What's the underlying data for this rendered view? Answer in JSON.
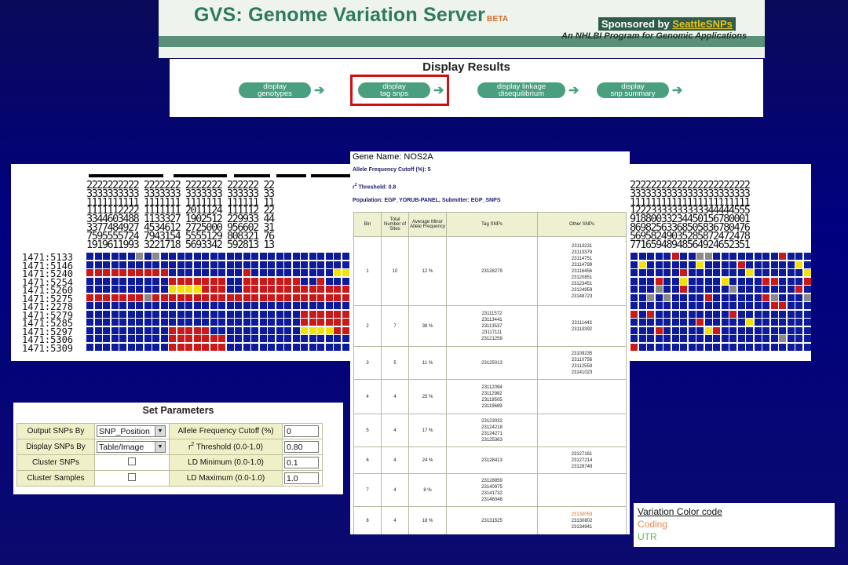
{
  "banner": {
    "title": "GVS: Genome Variation Server",
    "beta": "BETA",
    "sponsored_prefix": "Sponsored by ",
    "sponsor_link": "SeattleSNPs",
    "subtitle": "An NHLBI Program for Genomic Applications"
  },
  "results": {
    "heading": "Display Results",
    "buttons": [
      {
        "line1": "display",
        "line2": "genotypes"
      },
      {
        "line1": "display",
        "line2": "tag snps"
      },
      {
        "line1": "display linkage",
        "line2": "disequilibrium"
      },
      {
        "line1": "display",
        "line2": "snp summary"
      }
    ],
    "selected": "display tag snps"
  },
  "genotypes": {
    "sample_labels": [
      "1471:5133",
      "1471:5146",
      "1471:5240",
      "1471:5254",
      "1471:5260",
      "1471:5275",
      "1471:2278",
      "1471:5279",
      "1471:5285",
      "1471:5297",
      "1471:5306",
      "1471:5309"
    ],
    "header_rows_left": [
      "2222222222 2222222 2222222 222222 22",
      "3333333333 3333333 3333333 333333 33",
      "1111111111 1111111 1111111 111111 11",
      "1111112222 1111111 2011124 111112 22",
      "3344603488 1133327 1902512 229933 44",
      "3377484927 4534612 2725000 956602 31",
      "7595555724 7943154 5555129 808321 76",
      "1919611993 3221718 5693342 592813 13"
    ],
    "header_rows_right": [
      "22222222222222222222222",
      "33333333333333333333333",
      "11111111111111111111111",
      "12223333333333344444555",
      "91880033234450156780001",
      "86982563368505836780476",
      "56958249035285872472478",
      "77165948948564924652351"
    ],
    "left_grid": [
      "bbbbbbgbgbbbbbbbbbbbbbbbbbbbbbbbbbbb",
      "bbbbbbbbbbbbbbbbbbbbbbbbbbbbbbbbbbbb",
      "rrrrrrrrrrbbbbbbbbbrbbbbbbbbbbyyyybb",
      "bbbbbbbbbbrrrrrrrbbrrrrrrrbbrbbbbbbb",
      "bbbbbbbbbbyyyyrrrbbrrrrrrrrrrrrrrrrr",
      "rrrrrrrgrrrrrrrrrrrrrrrrrrrrrrrrrrrr",
      "bbbbbbbbbbbbbbbbbbbbbbbbbbbbbbbbbbbb",
      "bbbbbbbbbbbbbbbbbbbbbbbbbbrrrrrrrrrr",
      "bbbbbbbbbbbbbbbbbbbbbbbbbbrrrrrrrrrr",
      "bbbbbbbbbbrrrrrbbbbbbbbbbbyyyyrrrrrb",
      "bbbbbbbbbbrrrrrrrbbbbbbbbbbbbbbbbbgb",
      "bbbbbbbbbbrrrrrrrbbbbbbbbbbbbbbbbbbb"
    ],
    "right_grid": [
      "bbbbbrbbggbbbbbbbbrbbbb",
      "bybbbbbbybbbbrbbbbbbybb",
      "bbbbbbrbbbbbbbybbbbbbyb",
      "bbbrbbybbbbybbbbrrbbbrb",
      "bbbgbbrbbbbbgbbbbbbbrbb",
      "bbgbgbbbbrbbbbbbrgbbbgb",
      "bbbbbbbbbbbbbbbbbrrbbbb",
      "rbrbbbbbbbbbrbbbbbbbbbb",
      "bbbbbbbbrbbbbbybbbbbbbb",
      "bbbrbbbbbyrbbbbbbbbbbbb",
      "bbbbbbbbbbbbbbbbbbgbbbb",
      "rbbbbbbbbbbbbbbbbbbbbbb"
    ]
  },
  "tag_snps": {
    "gene_label": "Gene Name: NOS2A",
    "allele_cutoff": "Allele Frequency Cutoff (%): 5",
    "r2_label": "r",
    "r2_value": " Threshold: 0.8",
    "population": "Population: EGP_YORUB-PANEL, Submitter: EGP_SNPS",
    "columns": [
      "Bin",
      "Total Number of Sites",
      "Average Minor Allele Frequency",
      "Tag SNPs",
      "Other SNPs"
    ],
    "rows": [
      {
        "bin": "1",
        "sites": "10",
        "maf": "12 %",
        "tag": [
          "23128279"
        ],
        "other": [
          "23113231",
          "23113379",
          "23114751",
          "23114799",
          "23116456",
          "23120851",
          "23123451",
          "23124959",
          "23148723"
        ]
      },
      {
        "bin": "2",
        "sites": "7",
        "maf": "38 %",
        "tag": [
          "23111572",
          "23113441",
          "23113537",
          "23117111",
          "23121258"
        ],
        "other": [
          "23111443",
          "23113392"
        ]
      },
      {
        "bin": "3",
        "sites": "5",
        "maf": "11 %",
        "tag": [
          "23125013"
        ],
        "other": [
          "23109235",
          "23110756",
          "23112559",
          "23141023"
        ]
      },
      {
        "bin": "4",
        "sites": "4",
        "maf": "25 %",
        "tag": [
          "23112094",
          "23112982",
          "23119505",
          "23119689"
        ],
        "other": []
      },
      {
        "bin": "5",
        "sites": "4",
        "maf": "17 %",
        "tag": [
          "23123032",
          "23124218",
          "23124271",
          "23125363"
        ],
        "other": []
      },
      {
        "bin": "6",
        "sites": "4",
        "maf": "24 %",
        "tag": [
          "23128413"
        ],
        "other": [
          "23127161",
          "23127214",
          "23128749"
        ]
      },
      {
        "bin": "7",
        "sites": "4",
        "maf": "8 %",
        "tag": [
          "23128859",
          "23140975",
          "23141732",
          "23146048"
        ],
        "other": []
      },
      {
        "bin": "8",
        "sites": "4",
        "maf": "18 %",
        "tag": [
          "23131525"
        ],
        "other": [
          "23130059",
          "23130802",
          "23134941"
        ]
      }
    ]
  },
  "parameters": {
    "heading": "Set Parameters",
    "output_snps_by": {
      "label": "Output SNPs By",
      "value": "SNP_Position"
    },
    "display_snps_by": {
      "label": "Display SNPs By",
      "value": "Table/Image"
    },
    "cluster_snps": {
      "label": "Cluster SNPs"
    },
    "cluster_samples": {
      "label": "Cluster Samples"
    },
    "allele_cutoff": {
      "label": "Allele Frequency Cutoff (%)",
      "value": "0"
    },
    "r2_threshold": {
      "label_sup": "2",
      "label_prefix": "r",
      "label_rest": " Threshold (0.0-1.0)",
      "value": "0.80"
    },
    "ld_min": {
      "label": "LD Minimum (0.0-1.0)",
      "value": "0.1"
    },
    "ld_max": {
      "label": "LD Maximum (0.0-1.0)",
      "value": "1.0"
    }
  },
  "legend": {
    "title": "Variation Color code",
    "coding": "Coding",
    "utr": "UTR"
  },
  "colors": {
    "blue": "#0d1a9a",
    "red": "#c81a1a",
    "yellow": "#f2e20c",
    "gray": "#8a8a8a",
    "brand_green": "#2e7a5e"
  }
}
